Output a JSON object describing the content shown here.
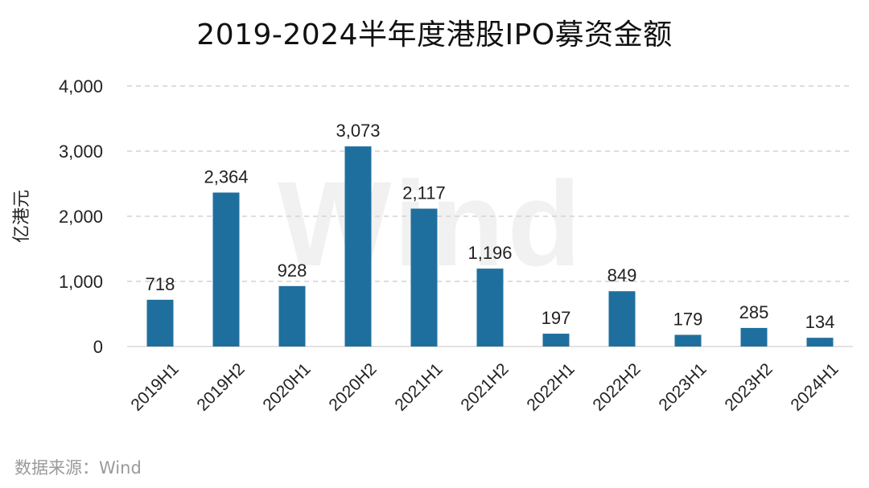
{
  "chart_data": {
    "type": "bar",
    "title": "2019-2024半年度港股IPO募资金额",
    "ylabel": "亿港元",
    "xlabel": "",
    "categories": [
      "2019H1",
      "2019H2",
      "2020H1",
      "2020H2",
      "2021H1",
      "2021H2",
      "2022H1",
      "2022H2",
      "2023H1",
      "2023H2",
      "2024H1"
    ],
    "values": [
      718,
      2364,
      928,
      3073,
      2117,
      1196,
      197,
      849,
      179,
      285,
      134
    ],
    "value_labels": [
      "718",
      "2,364",
      "928",
      "3,073",
      "2,117",
      "1,196",
      "197",
      "849",
      "179",
      "285",
      "134"
    ],
    "yticks": [
      0,
      1000,
      2000,
      3000,
      4000
    ],
    "ytick_labels": [
      "0",
      "1,000",
      "2,000",
      "3,000",
      "4,000"
    ],
    "ylim": [
      0,
      4000
    ],
    "grid": "dashed horizontal",
    "bar_color": "#1f6f9e"
  },
  "source": "数据来源：Wind",
  "watermark": "Wind"
}
